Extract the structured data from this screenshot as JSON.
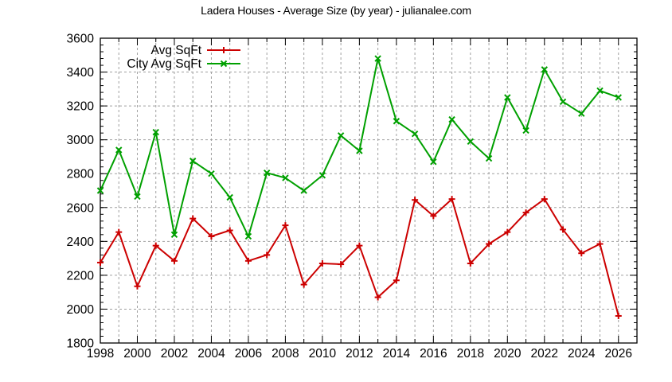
{
  "title": "Ladera Houses - Average Size (by year) - julianalee.com",
  "legend": {
    "position": "top-left",
    "items": [
      {
        "label": "Avg SqFt",
        "color": "#cc0000",
        "marker": "plus"
      },
      {
        "label": "City Avg SqFt",
        "color": "#00a000",
        "marker": "cross"
      }
    ]
  },
  "axes": {
    "x_ticks": [
      "1998",
      "2000",
      "2002",
      "2004",
      "2006",
      "2008",
      "2010",
      "2012",
      "2014",
      "2016",
      "2018",
      "2020",
      "2022",
      "2024",
      "2026"
    ],
    "y_ticks": [
      "3600",
      "3400",
      "3200",
      "3000",
      "2800",
      "2600",
      "2400",
      "2200",
      "2000",
      "1800"
    ]
  },
  "chart_data": {
    "type": "line",
    "title": "Ladera Houses - Average Size (by year) - julianalee.com",
    "xlabel": "",
    "ylabel": "",
    "xlim": [
      1998,
      2027
    ],
    "ylim": [
      1800,
      3600
    ],
    "grid": true,
    "legend_position": "top-left",
    "x": [
      1998,
      1999,
      2000,
      2001,
      2002,
      2003,
      2004,
      2005,
      2006,
      2007,
      2008,
      2009,
      2010,
      2011,
      2012,
      2013,
      2014,
      2015,
      2016,
      2017,
      2018,
      2019,
      2020,
      2021,
      2022,
      2023,
      2024,
      2025,
      2026
    ],
    "series": [
      {
        "name": "Avg SqFt",
        "color": "#cc0000",
        "values": [
          2275,
          2455,
          2135,
          2375,
          2285,
          2535,
          2430,
          2465,
          2285,
          2320,
          2495,
          2145,
          2270,
          2265,
          2375,
          2070,
          2170,
          2645,
          2550,
          2650,
          2270,
          2385,
          2455,
          2570,
          2650,
          2470,
          2330,
          2385,
          1960
        ]
      },
      {
        "name": "City Avg SqFt",
        "color": "#00a000",
        "values": [
          2700,
          2940,
          2665,
          3045,
          2440,
          2875,
          2800,
          2660,
          2430,
          2805,
          2775,
          2700,
          2790,
          3025,
          2935,
          3480,
          3110,
          3035,
          2870,
          3120,
          2990,
          2890,
          3250,
          3055,
          3415,
          3225,
          3155,
          3290,
          3250
        ]
      }
    ]
  }
}
